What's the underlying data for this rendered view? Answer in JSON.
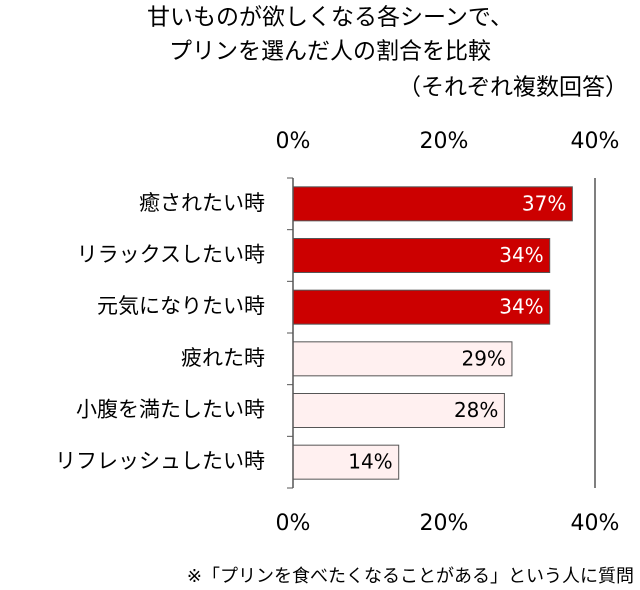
{
  "chart_data": {
    "type": "bar",
    "title": [
      "甘いものが欲しくなる各シーンで、",
      "プリンを選んだ人の割合を比較",
      "（それぞれ複数回答）"
    ],
    "categories": [
      "癒されたい時",
      "リラックスしたい時",
      "元気になりたい時",
      "疲れた時",
      "小腹を満たしたい時",
      "リフレッシュしたい時"
    ],
    "values": [
      37,
      34,
      34,
      29,
      28,
      14
    ],
    "value_labels": [
      "37%",
      "34%",
      "34%",
      "29%",
      "28%",
      "14%"
    ],
    "colors": [
      "#cc0000",
      "#cc0000",
      "#cc0000",
      "#fff0f0",
      "#fff0f0",
      "#fff0f0"
    ],
    "label_colors": [
      "#ffffff",
      "#ffffff",
      "#ffffff",
      "#000000",
      "#000000",
      "#000000"
    ],
    "xlim": [
      0,
      40
    ],
    "xticks": [
      {
        "value": 0,
        "label": "0%"
      },
      {
        "value": 20,
        "label": "20%"
      },
      {
        "value": 40,
        "label": "40%"
      }
    ],
    "grid": false,
    "footnote": "※「プリンを食べたくなることがある」という人に質問"
  }
}
